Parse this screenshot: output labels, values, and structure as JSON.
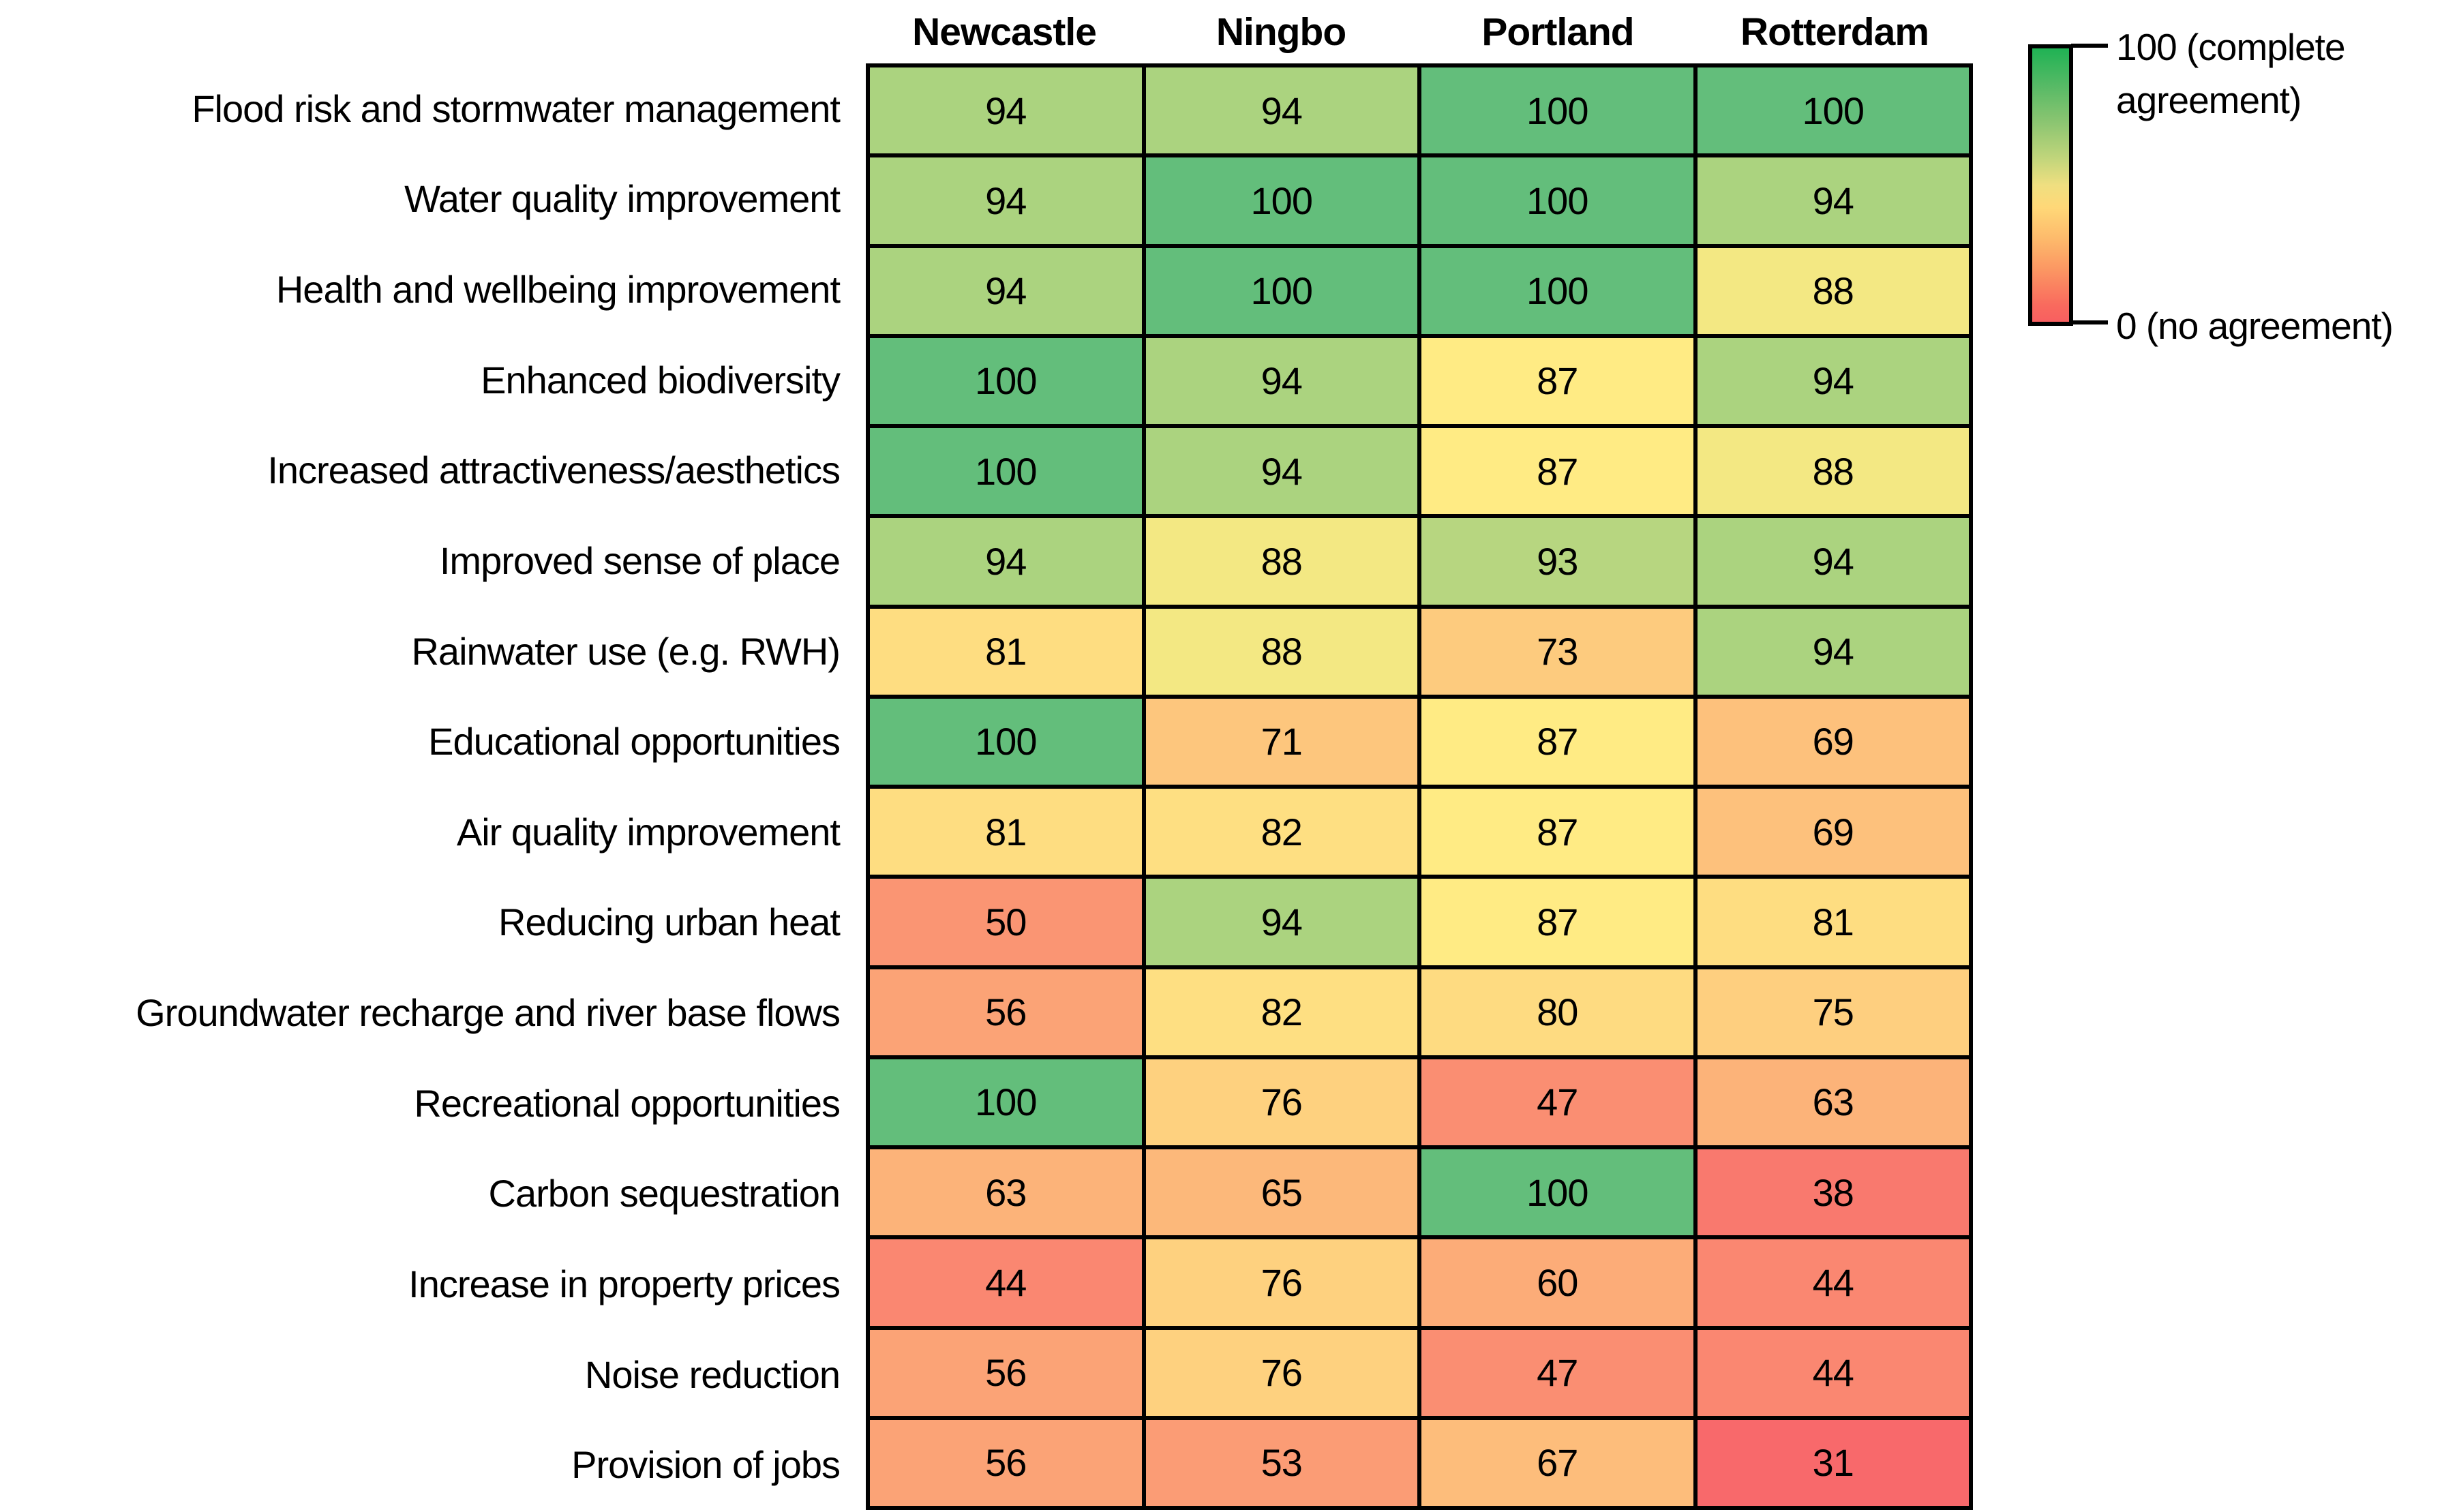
{
  "chart_data": {
    "type": "heatmap",
    "columns": [
      "Newcastle",
      "Ningbo",
      "Portland",
      "Rotterdam"
    ],
    "row_labels": [
      "Flood risk and stormwater management",
      "Water quality improvement",
      "Health and wellbeing improvement",
      "Enhanced biodiversity",
      "Increased attractiveness/aesthetics",
      "Improved sense of place",
      "Rainwater use (e.g. RWH)",
      "Educational opportunities",
      "Air quality improvement",
      "Reducing urban heat",
      "Groundwater recharge and river base flows",
      "Recreational opportunities",
      "Carbon sequestration",
      "Increase in property prices",
      "Noise reduction",
      "Provision of jobs"
    ],
    "values": [
      [
        94,
        94,
        100,
        100
      ],
      [
        94,
        100,
        100,
        94
      ],
      [
        94,
        100,
        100,
        88
      ],
      [
        100,
        94,
        87,
        94
      ],
      [
        100,
        94,
        87,
        88
      ],
      [
        94,
        88,
        93,
        94
      ],
      [
        81,
        88,
        73,
        94
      ],
      [
        100,
        71,
        87,
        69
      ],
      [
        81,
        82,
        87,
        69
      ],
      [
        50,
        94,
        87,
        81
      ],
      [
        56,
        82,
        80,
        75
      ],
      [
        100,
        76,
        47,
        63
      ],
      [
        63,
        65,
        100,
        38
      ],
      [
        44,
        76,
        60,
        44
      ],
      [
        56,
        76,
        47,
        44
      ],
      [
        56,
        53,
        67,
        31
      ]
    ],
    "value_range": [
      0,
      100
    ],
    "legend": {
      "max_label": "100 (complete agreement)",
      "min_label": "0 (no agreement)"
    },
    "colorscale": {
      "min_value": 31,
      "min_color": "#F8696B",
      "mid_value": 87,
      "mid_color": "#FFEB84",
      "max_value": 100,
      "max_color": "#63BE7B"
    },
    "layout": {
      "legend_position": "right",
      "grid": "black-cell-borders"
    }
  }
}
